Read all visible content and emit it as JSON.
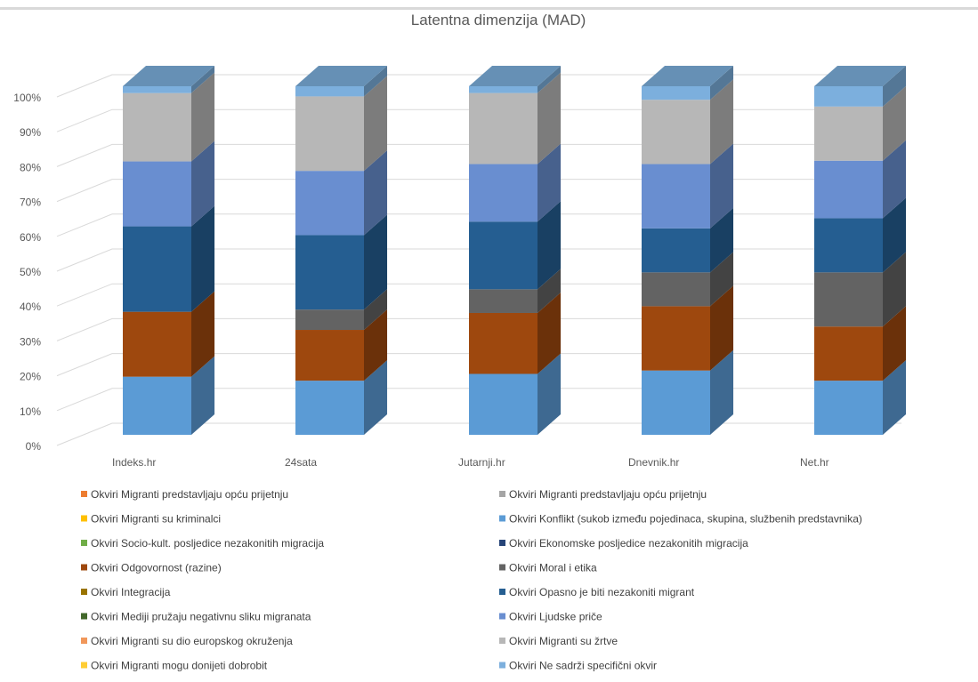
{
  "chart_data": {
    "type": "bar",
    "stacked": "percent",
    "three_d": true,
    "title": "Latentna dimenzija (MAD)",
    "categories": [
      "Indeks.hr",
      "24sata",
      "Jutarnji.hr",
      "Dnevnik.hr",
      "Net.hr"
    ],
    "ylim": [
      0,
      100
    ],
    "yticks": [
      "0%",
      "10%",
      "20%",
      "30%",
      "40%",
      "50%",
      "60%",
      "70%",
      "80%",
      "90%",
      "100%"
    ],
    "grid": true,
    "legend_position": "bottom",
    "stack_order": [
      3,
      6,
      7,
      9,
      11,
      13,
      15
    ],
    "series": [
      {
        "name": "Okviri Migranti predstavljaju opću prijetnju",
        "color": "#ED7D31",
        "values": [
          0,
          0,
          0,
          0,
          0
        ]
      },
      {
        "name": "Okviri Migranti predstavljaju opću prijetnju",
        "color": "#A5A5A5",
        "values": [
          0,
          0,
          0,
          0,
          0
        ]
      },
      {
        "name": "Okviri Migranti su kriminalci",
        "color": "#FFC000",
        "values": [
          0,
          0,
          0,
          0,
          0
        ]
      },
      {
        "name": "Okviri Konflikt (sukob između pojedinaca, skupina, službenih predstavnika)",
        "color": "#5B9BD5",
        "values": [
          17,
          16,
          18,
          19,
          16
        ]
      },
      {
        "name": "Okviri Socio-kult. posljedice nezakonitih migracija",
        "color": "#70AD47",
        "values": [
          0,
          0,
          0,
          0,
          0
        ]
      },
      {
        "name": "Okviri Ekonomske posljedice nezakonitih migracija",
        "color": "#264478",
        "values": [
          0,
          0,
          0,
          0,
          0
        ]
      },
      {
        "name": "Okviri Odgovornost (razine)",
        "color": "#9E480E",
        "values": [
          19,
          15,
          18,
          19,
          16
        ]
      },
      {
        "name": "Okviri Moral i etika",
        "color": "#636363",
        "values": [
          0,
          6,
          7,
          10,
          16
        ]
      },
      {
        "name": "Okviri Integracija",
        "color": "#997300",
        "values": [
          0,
          0,
          0,
          0,
          0
        ]
      },
      {
        "name": "Okviri Opasno je biti nezakoniti migrant",
        "color": "#255E91",
        "values": [
          25,
          22,
          20,
          13,
          16
        ]
      },
      {
        "name": "Okviri Mediji pružaju negativnu sliku migranata",
        "color": "#43682B",
        "values": [
          0,
          0,
          0,
          0,
          0
        ]
      },
      {
        "name": "Okviri Ljudske priče",
        "color": "#698ED0",
        "values": [
          19,
          19,
          17,
          19,
          17
        ]
      },
      {
        "name": "Okviri Migranti su dio europskog okruženja",
        "color": "#F1975A",
        "values": [
          0,
          0,
          0,
          0,
          0
        ]
      },
      {
        "name": "Okviri Migranti su žrtve",
        "color": "#B7B7B7",
        "values": [
          20,
          22,
          21,
          19,
          16
        ]
      },
      {
        "name": "Okviri Migranti mogu donijeti dobrobit",
        "color": "#FFCD33",
        "values": [
          0,
          0,
          0,
          0,
          0
        ]
      },
      {
        "name": "Okviri Ne sadrži specifični okvir",
        "color": "#7CAFDD",
        "values": [
          2,
          3,
          2,
          4,
          6
        ]
      }
    ]
  }
}
